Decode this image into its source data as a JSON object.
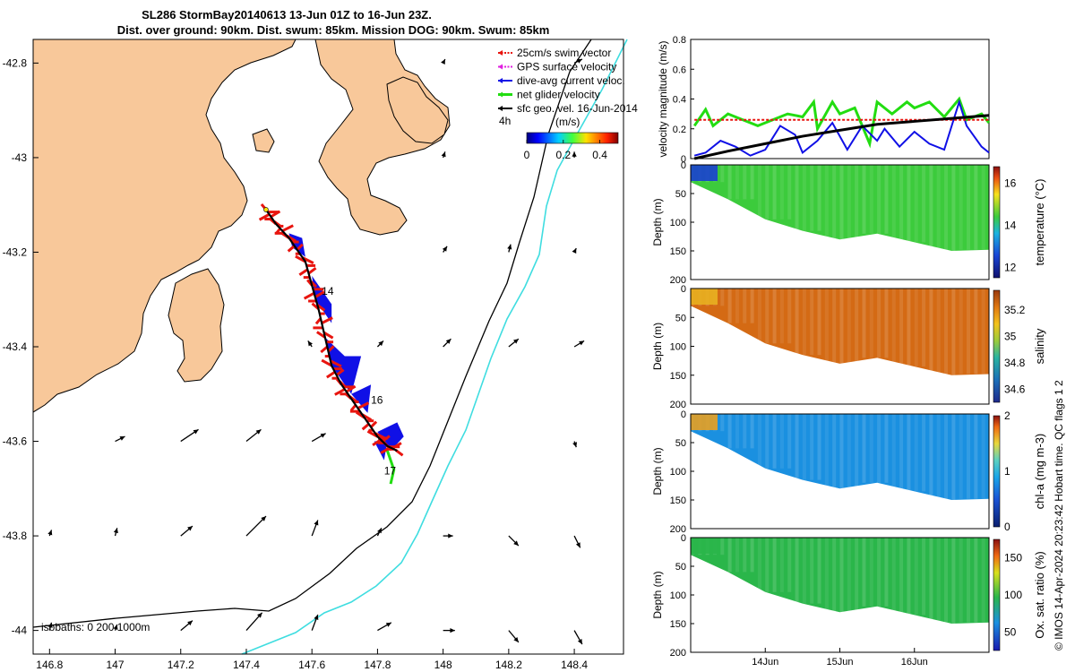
{
  "title": {
    "line1": "SL286 StormBay20140613 13-Jun 01Z to 16-Jun 23Z.",
    "line2": "Dist. over ground: 90km. Dist. swum: 85km. Mission DOG: 90km. Swum: 85km"
  },
  "colors": {
    "land": "#f8c89a",
    "swim_vector": "#e8150f",
    "dive_avg": "#1010e6",
    "net_glider": "#22dd11",
    "cyan_isobath": "#3fdde0",
    "gps": "#e020e0"
  },
  "map": {
    "lon_ticks": [
      "146.8",
      "147",
      "147.2",
      "147.4",
      "147.6",
      "147.8",
      "148",
      "148.2",
      "148.4"
    ],
    "lat_ticks": [
      "-42.8",
      "-43",
      "-43.2",
      "-43.4",
      "-43.6",
      "-43.8",
      "-44"
    ],
    "lon_range": [
      146.75,
      148.55
    ],
    "lat_range": [
      -44.05,
      -42.75
    ],
    "isobath_label": "isobaths: 0   200  1000m",
    "day_labels": [
      {
        "text": "14",
        "lon": 147.63,
        "lat": -43.29
      },
      {
        "text": "16",
        "lon": 147.78,
        "lat": -43.52
      },
      {
        "text": "17",
        "lon": 147.82,
        "lat": -43.67
      }
    ],
    "track": [
      [
        147.46,
        -43.11
      ],
      [
        147.49,
        -43.14
      ],
      [
        147.53,
        -43.17
      ],
      [
        147.58,
        -43.22
      ],
      [
        147.6,
        -43.27
      ],
      [
        147.62,
        -43.32
      ],
      [
        147.64,
        -43.38
      ],
      [
        147.66,
        -43.44
      ],
      [
        147.69,
        -43.48
      ],
      [
        147.72,
        -43.51
      ],
      [
        147.76,
        -43.55
      ],
      [
        147.8,
        -43.59
      ],
      [
        147.83,
        -43.61
      ],
      [
        147.86,
        -43.62
      ]
    ],
    "green_tail": [
      [
        147.83,
        -43.62
      ],
      [
        147.85,
        -43.66
      ],
      [
        147.84,
        -43.69
      ]
    ],
    "current_arrows": [
      {
        "lon": 147.0,
        "lat": -43.6,
        "u": 0.1,
        "v": 0.05
      },
      {
        "lon": 147.2,
        "lat": -43.6,
        "u": 0.18,
        "v": 0.12
      },
      {
        "lon": 147.4,
        "lat": -43.6,
        "u": 0.15,
        "v": 0.12
      },
      {
        "lon": 147.6,
        "lat": -43.6,
        "u": 0.14,
        "v": 0.08
      },
      {
        "lon": 147.8,
        "lat": -43.6,
        "u": 0.06,
        "v": 0.02
      },
      {
        "lon": 148.4,
        "lat": -43.6,
        "u": 0.02,
        "v": -0.06
      },
      {
        "lon": 146.8,
        "lat": -43.8,
        "u": 0.02,
        "v": 0.06
      },
      {
        "lon": 147.0,
        "lat": -43.8,
        "u": 0.02,
        "v": 0.08
      },
      {
        "lon": 147.2,
        "lat": -43.8,
        "u": 0.12,
        "v": 0.1
      },
      {
        "lon": 147.4,
        "lat": -43.8,
        "u": 0.2,
        "v": 0.2
      },
      {
        "lon": 147.6,
        "lat": -43.8,
        "u": 0.06,
        "v": 0.16
      },
      {
        "lon": 147.8,
        "lat": -43.8,
        "u": 0.04,
        "v": 0.08
      },
      {
        "lon": 148.0,
        "lat": -43.8,
        "u": 0.1,
        "v": 0.0
      },
      {
        "lon": 148.2,
        "lat": -43.8,
        "u": 0.1,
        "v": -0.1
      },
      {
        "lon": 148.4,
        "lat": -43.8,
        "u": 0.06,
        "v": -0.12
      },
      {
        "lon": 146.8,
        "lat": -44.0,
        "u": 0.02,
        "v": 0.08
      },
      {
        "lon": 147.0,
        "lat": -44.0,
        "u": 0.02,
        "v": 0.06
      },
      {
        "lon": 147.2,
        "lat": -44.0,
        "u": 0.12,
        "v": 0.1
      },
      {
        "lon": 147.4,
        "lat": -44.0,
        "u": 0.16,
        "v": 0.18
      },
      {
        "lon": 147.6,
        "lat": -44.0,
        "u": 0.06,
        "v": 0.16
      },
      {
        "lon": 147.8,
        "lat": -44.0,
        "u": 0.14,
        "v": 0.08
      },
      {
        "lon": 148.0,
        "lat": -44.0,
        "u": 0.12,
        "v": 0.0
      },
      {
        "lon": 148.2,
        "lat": -44.0,
        "u": 0.1,
        "v": -0.12
      },
      {
        "lon": 148.4,
        "lat": -44.0,
        "u": 0.08,
        "v": -0.14
      },
      {
        "lon": 147.8,
        "lat": -43.4,
        "u": 0.06,
        "v": 0.06
      },
      {
        "lon": 148.0,
        "lat": -43.4,
        "u": 0.08,
        "v": 0.08
      },
      {
        "lon": 148.2,
        "lat": -43.4,
        "u": 0.1,
        "v": 0.08
      },
      {
        "lon": 148.4,
        "lat": -43.4,
        "u": 0.1,
        "v": 0.06
      },
      {
        "lon": 147.6,
        "lat": -43.4,
        "u": -0.04,
        "v": 0.06
      },
      {
        "lon": 148.0,
        "lat": -43.2,
        "u": 0.04,
        "v": 0.06
      },
      {
        "lon": 148.2,
        "lat": -43.2,
        "u": 0.02,
        "v": 0.08
      },
      {
        "lon": 148.4,
        "lat": -43.2,
        "u": 0.02,
        "v": 0.04
      },
      {
        "lon": 148.0,
        "lat": -43.0,
        "u": 0.02,
        "v": 0.06
      },
      {
        "lon": 148.4,
        "lat": -43.0,
        "u": 0.0,
        "v": 0.06
      },
      {
        "lon": 148.0,
        "lat": -42.8,
        "u": 0.02,
        "v": 0.04
      },
      {
        "lon": 148.4,
        "lat": -42.8,
        "u": 0.08,
        "v": 0.04
      }
    ],
    "legend": [
      {
        "label": "25cm/s swim vector",
        "color": "#e8150f"
      },
      {
        "label": "GPS surface velocity",
        "color": "#e020e0"
      },
      {
        "label": "dive-avg current veloc.",
        "color": "#1010e6"
      },
      {
        "label": "net glider velocity",
        "color": "#22dd11"
      },
      {
        "label": "sfc geo. vel. 16-Jun-2014",
        "color": "#000000"
      }
    ],
    "colorbar": {
      "left_label": "4h",
      "unit": "(m/s)",
      "ticks": [
        "0",
        "0.2",
        "0.4"
      ],
      "range": [
        0,
        0.5
      ]
    }
  },
  "chart_data": [
    {
      "type": "line",
      "ylabel": "velocity magnitude (m/s)",
      "ylim": [
        0,
        0.8
      ],
      "yticks": [
        "0",
        "0.2",
        "0.4",
        "0.6",
        "0.8"
      ],
      "x_range_days": [
        13.0,
        17.0
      ],
      "series": [
        {
          "color": "#22dd11",
          "x": [
            13.05,
            13.2,
            13.3,
            13.5,
            13.7,
            13.9,
            14.1,
            14.3,
            14.5,
            14.65,
            14.7,
            14.9,
            15.0,
            15.2,
            15.4,
            15.5,
            15.7,
            15.9,
            16.0,
            16.2,
            16.4,
            16.6,
            16.7,
            16.9,
            17.0
          ],
          "values": [
            0.22,
            0.33,
            0.22,
            0.3,
            0.26,
            0.22,
            0.26,
            0.3,
            0.28,
            0.38,
            0.2,
            0.38,
            0.3,
            0.34,
            0.1,
            0.38,
            0.3,
            0.38,
            0.34,
            0.38,
            0.28,
            0.4,
            0.26,
            0.3,
            0.24
          ]
        },
        {
          "color": "#1010e6",
          "x": [
            13.05,
            13.2,
            13.4,
            13.6,
            13.8,
            14.0,
            14.2,
            14.4,
            14.5,
            14.7,
            14.9,
            15.1,
            15.3,
            15.5,
            15.6,
            15.8,
            16.0,
            16.2,
            16.4,
            16.6,
            16.7,
            16.9,
            17.0
          ],
          "values": [
            0.02,
            0.04,
            0.12,
            0.08,
            0.02,
            0.06,
            0.22,
            0.16,
            0.04,
            0.12,
            0.24,
            0.06,
            0.22,
            0.12,
            0.2,
            0.08,
            0.18,
            0.1,
            0.06,
            0.38,
            0.22,
            0.08,
            0.04
          ]
        },
        {
          "color": "#e8150f",
          "x": [
            13.05,
            17.0
          ],
          "values": [
            0.26,
            0.26
          ]
        },
        {
          "color": "#000000",
          "x": [
            13.05,
            13.5,
            14.0,
            14.5,
            15.0,
            15.5,
            16.0,
            16.5,
            17.0
          ],
          "values": [
            0.0,
            0.05,
            0.1,
            0.15,
            0.19,
            0.23,
            0.25,
            0.27,
            0.29
          ]
        }
      ]
    },
    {
      "type": "heatmap",
      "variable": "temperature",
      "ylabel": "Depth (m)",
      "cbar_label": "temperature (°C)",
      "ylim": [
        200,
        0
      ],
      "yticks": [
        "0",
        "50",
        "100",
        "150",
        "200"
      ],
      "cbar_ticks": [
        "12",
        "14",
        "16"
      ],
      "cbar_range": [
        11.5,
        16.8
      ],
      "bottom_depth": [
        30,
        60,
        95,
        115,
        130,
        120,
        135,
        150,
        148
      ],
      "profile": {
        "surface_value": 13.6,
        "patch": "#1a3fd0"
      }
    },
    {
      "type": "heatmap",
      "variable": "salinity",
      "ylabel": "Depth (m)",
      "cbar_label": "salinity",
      "ylim": [
        200,
        0
      ],
      "yticks": [
        "0",
        "50",
        "100",
        "150",
        "200"
      ],
      "cbar_ticks": [
        "34.6",
        "34.8",
        "35",
        "35.2"
      ],
      "cbar_range": [
        34.5,
        35.35
      ],
      "bottom_depth": [
        30,
        60,
        95,
        115,
        130,
        120,
        135,
        150,
        148
      ],
      "profile": {
        "surface_value": 35.1,
        "patch": "#e8b020"
      }
    },
    {
      "type": "heatmap",
      "variable": "chl-a",
      "ylabel": "Depth (m)",
      "cbar_label": "chl-a (mg m-3)",
      "ylim": [
        200,
        0
      ],
      "yticks": [
        "0",
        "50",
        "100",
        "150",
        "200"
      ],
      "cbar_ticks": [
        "0",
        "1",
        "2"
      ],
      "cbar_range": [
        0,
        2
      ],
      "bottom_depth": [
        30,
        60,
        95,
        115,
        130,
        120,
        135,
        150,
        148
      ],
      "profile": {
        "surface_value": 0.5,
        "patch": "#e8a020"
      }
    },
    {
      "type": "heatmap",
      "variable": "oxygen",
      "ylabel": "Depth (m)",
      "cbar_label": "Ox. sat. ratio (%)",
      "ylim": [
        200,
        0
      ],
      "yticks": [
        "0",
        "50",
        "100",
        "150",
        "200"
      ],
      "cbar_ticks": [
        "50",
        "100",
        "150"
      ],
      "cbar_range": [
        25,
        175
      ],
      "bottom_depth": [
        30,
        60,
        95,
        115,
        130,
        120,
        135,
        150,
        148
      ],
      "profile": {
        "surface_value": 98,
        "patch": "#2ab64a"
      }
    }
  ],
  "time_axis": {
    "ticks": [
      {
        "label": "14Jun",
        "day": 14
      },
      {
        "label": "15Jun",
        "day": 15
      },
      {
        "label": "16Jun",
        "day": 16
      }
    ]
  },
  "footer": "© IMOS 14-Apr-2024 20:23:42 Hobart time. QC flags 1  2"
}
